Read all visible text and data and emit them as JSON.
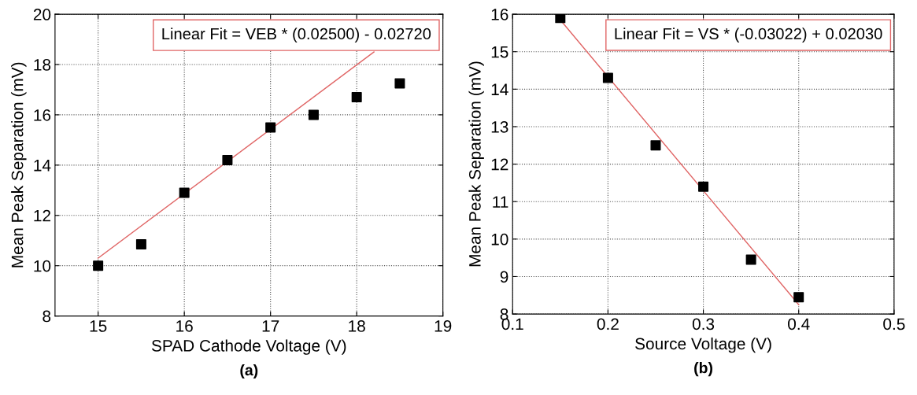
{
  "chart_data": [
    {
      "type": "scatter",
      "xlabel": "SPAD Cathode Voltage (V)",
      "ylabel": "Mean Peak Separation (mV)",
      "xlim": [
        14.5,
        19
      ],
      "xticks": [
        15,
        16,
        17,
        18,
        19
      ],
      "ylim": [
        8,
        20
      ],
      "yticks": [
        8,
        10,
        12,
        14,
        16,
        18,
        20
      ],
      "grid": true,
      "annotations": [
        "Linear Fit = VEB * (0.02500) - 0.02720",
        "(a)"
      ],
      "series": [
        {
          "marker": "square",
          "color": "#000000",
          "x": [
            15,
            15.5,
            16,
            16.5,
            17,
            17.5,
            18,
            18.5
          ],
          "values": [
            10.0,
            10.85,
            12.9,
            14.2,
            15.5,
            16.0,
            16.7,
            17.25
          ]
        },
        {
          "type": "line",
          "color": "#e06666",
          "x": [
            15,
            18.2
          ],
          "values": [
            10.3,
            18.5
          ]
        }
      ]
    },
    {
      "type": "scatter",
      "xlabel": "Source Voltage (V)",
      "ylabel": "Mean Peak Separation (mV)",
      "xlim": [
        0.1,
        0.5
      ],
      "xticks": [
        0.1,
        0.2,
        0.3,
        0.4,
        0.5
      ],
      "ylim": [
        8,
        16
      ],
      "yticks": [
        8,
        9,
        10,
        11,
        12,
        13,
        14,
        15,
        16
      ],
      "grid": true,
      "annotations": [
        "Linear Fit = VS * (-0.03022) + 0.02030",
        "(b)"
      ],
      "series": [
        {
          "marker": "square",
          "color": "#000000",
          "x": [
            0.15,
            0.2,
            0.25,
            0.3,
            0.35,
            0.4
          ],
          "values": [
            15.9,
            14.3,
            12.5,
            11.4,
            9.45,
            8.45
          ]
        },
        {
          "type": "line",
          "color": "#e06666",
          "x": [
            0.15,
            0.4
          ],
          "values": [
            15.85,
            8.25
          ]
        }
      ]
    }
  ]
}
